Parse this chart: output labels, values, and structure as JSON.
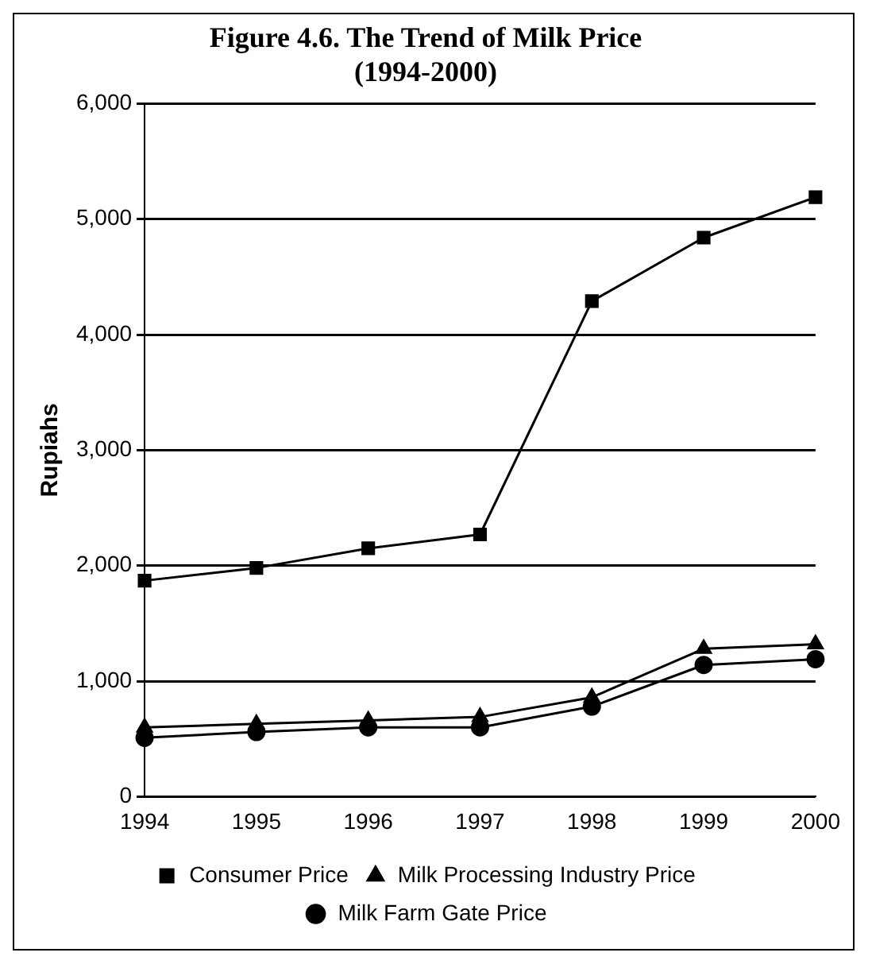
{
  "chart_data": {
    "type": "line",
    "title": "Figure 4.6. The Trend of Milk Price\n(1994-2000)",
    "ylabel": "Rupiahs",
    "categories": [
      "1994",
      "1995",
      "1996",
      "1997",
      "1998",
      "1999",
      "2000"
    ],
    "series": [
      {
        "name": "Consumer Price",
        "color": "#000000",
        "marker": "square",
        "values": [
          1870,
          1980,
          2150,
          2270,
          4290,
          4840,
          5190
        ]
      },
      {
        "name": "Milk Processing Industry Price",
        "color": "#000000",
        "marker": "triangle",
        "values": [
          600,
          630,
          660,
          690,
          860,
          1280,
          1320
        ]
      },
      {
        "name": "Milk Farm Gate Price",
        "color": "#000000",
        "marker": "circle",
        "values": [
          510,
          560,
          600,
          600,
          780,
          1140,
          1190
        ]
      }
    ],
    "ylim": [
      0,
      6000
    ],
    "yticks": [
      0,
      {
        "value": 1000,
        "label": "1,000"
      },
      {
        "value": 2000,
        "label": "2,000"
      },
      {
        "value": 3000,
        "label": "3,000"
      },
      {
        "value": 4000,
        "label": "4,000"
      },
      {
        "value": 5000,
        "label": "5,000"
      },
      {
        "value": 6000,
        "label": "6,000"
      }
    ],
    "grid": "y",
    "legend": "bottom",
    "line_style": "solid"
  }
}
